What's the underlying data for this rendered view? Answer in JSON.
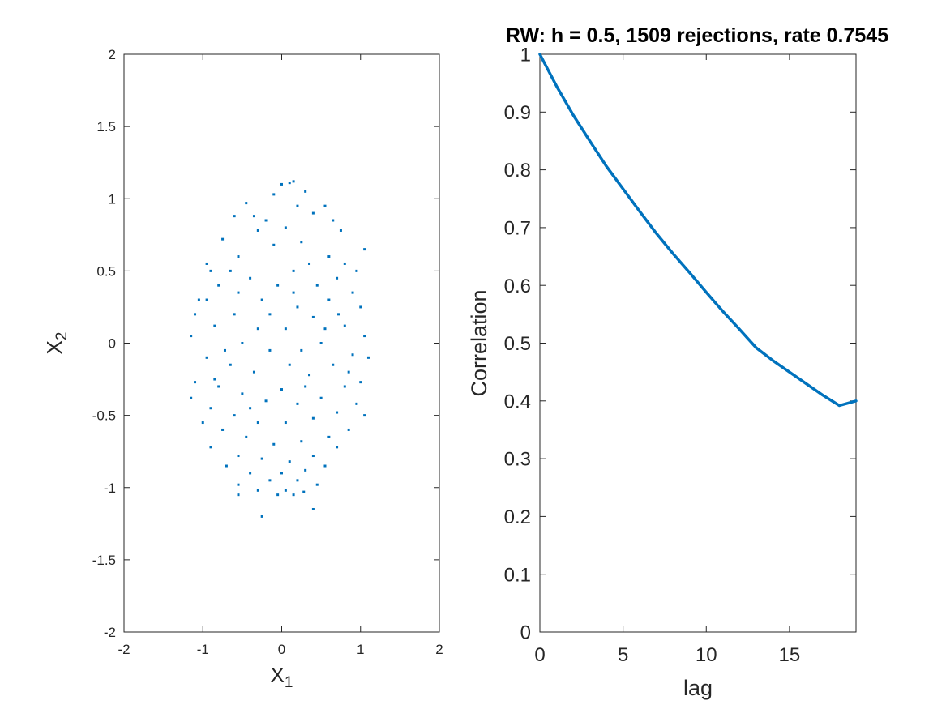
{
  "colors": {
    "series": "#0072BD",
    "axis": "#262626",
    "background": "#ffffff"
  },
  "chart_data": [
    {
      "type": "scatter",
      "title": "",
      "xlabel": "X",
      "xlabel_sub": "1",
      "ylabel": "X",
      "ylabel_sub": "2",
      "xlim": [
        -2,
        2
      ],
      "ylim": [
        -2,
        2
      ],
      "xticks": [
        -2,
        -1,
        0,
        1,
        2
      ],
      "yticks": [
        -2,
        -1.5,
        -1,
        -0.5,
        0,
        0.5,
        1,
        1.5,
        2
      ],
      "xtick_labels": [
        "-2",
        "-1",
        "0",
        "1",
        "2"
      ],
      "ytick_labels": [
        "-2",
        "-1.5",
        "-1",
        "-0.5",
        "0",
        "0.5",
        "1",
        "1.5",
        "2"
      ],
      "grid": false,
      "series": [
        {
          "points": [
            [
              0,
              1.1
            ],
            [
              0.1,
              1.11
            ],
            [
              0.15,
              1.12
            ],
            [
              -0.1,
              1.03
            ],
            [
              0.3,
              1.05
            ],
            [
              -0.45,
              0.97
            ],
            [
              0.55,
              0.95
            ],
            [
              -0.6,
              0.88
            ],
            [
              0.4,
              0.9
            ],
            [
              -0.2,
              0.85
            ],
            [
              0.2,
              0.95
            ],
            [
              0.05,
              0.8
            ],
            [
              -0.3,
              0.78
            ],
            [
              0.75,
              0.78
            ],
            [
              -0.75,
              0.72
            ],
            [
              0.25,
              0.7
            ],
            [
              -0.1,
              0.68
            ],
            [
              0.6,
              0.6
            ],
            [
              -0.55,
              0.6
            ],
            [
              0.8,
              0.55
            ],
            [
              -0.9,
              0.5
            ],
            [
              1.05,
              0.65
            ],
            [
              -0.65,
              0.5
            ],
            [
              0.35,
              0.55
            ],
            [
              0.15,
              0.5
            ],
            [
              0.45,
              0.4
            ],
            [
              -0.4,
              0.45
            ],
            [
              0.7,
              0.45
            ],
            [
              -0.8,
              0.4
            ],
            [
              -0.05,
              0.4
            ],
            [
              0.9,
              0.35
            ],
            [
              -0.95,
              0.3
            ],
            [
              0.6,
              0.3
            ],
            [
              -0.25,
              0.3
            ],
            [
              0.2,
              0.25
            ],
            [
              1.0,
              0.25
            ],
            [
              -1.1,
              0.2
            ],
            [
              -0.6,
              0.2
            ],
            [
              0.4,
              0.18
            ],
            [
              -0.85,
              0.12
            ],
            [
              0.8,
              0.12
            ],
            [
              -0.3,
              0.1
            ],
            [
              0.05,
              0.1
            ],
            [
              1.05,
              0.05
            ],
            [
              -1.15,
              0.05
            ],
            [
              0.5,
              0.0
            ],
            [
              -0.5,
              0.0
            ],
            [
              -0.15,
              -0.05
            ],
            [
              0.25,
              -0.05
            ],
            [
              0.9,
              -0.08
            ],
            [
              -0.95,
              -0.1
            ],
            [
              -0.65,
              -0.15
            ],
            [
              0.65,
              -0.15
            ],
            [
              0.1,
              -0.15
            ],
            [
              -0.35,
              -0.2
            ],
            [
              0.35,
              -0.22
            ],
            [
              -1.1,
              -0.27
            ],
            [
              1.0,
              -0.27
            ],
            [
              -0.8,
              -0.3
            ],
            [
              0.8,
              -0.3
            ],
            [
              0.0,
              -0.32
            ],
            [
              -0.5,
              -0.35
            ],
            [
              0.5,
              -0.38
            ],
            [
              -1.15,
              -0.38
            ],
            [
              -0.2,
              -0.4
            ],
            [
              0.2,
              -0.42
            ],
            [
              0.95,
              -0.42
            ],
            [
              -0.9,
              -0.45
            ],
            [
              0.7,
              -0.48
            ],
            [
              -0.6,
              -0.5
            ],
            [
              0.4,
              -0.52
            ],
            [
              -0.3,
              -0.55
            ],
            [
              0.05,
              -0.55
            ],
            [
              1.05,
              -0.5
            ],
            [
              -1.0,
              -0.55
            ],
            [
              -0.75,
              -0.6
            ],
            [
              0.85,
              -0.6
            ],
            [
              0.6,
              -0.65
            ],
            [
              -0.45,
              -0.65
            ],
            [
              0.25,
              -0.68
            ],
            [
              -0.1,
              -0.7
            ],
            [
              -0.9,
              -0.72
            ],
            [
              0.7,
              -0.72
            ],
            [
              0.4,
              -0.78
            ],
            [
              -0.55,
              -0.78
            ],
            [
              -0.25,
              -0.8
            ],
            [
              0.1,
              -0.82
            ],
            [
              -0.7,
              -0.85
            ],
            [
              0.55,
              -0.85
            ],
            [
              0.3,
              -0.88
            ],
            [
              -0.4,
              -0.9
            ],
            [
              0.0,
              -0.9
            ],
            [
              -0.15,
              -0.95
            ],
            [
              0.2,
              -0.95
            ],
            [
              -0.55,
              -0.98
            ],
            [
              0.45,
              -0.98
            ],
            [
              -0.3,
              -1.02
            ],
            [
              0.05,
              -1.02
            ],
            [
              -0.05,
              -1.05
            ],
            [
              0.15,
              -1.05
            ],
            [
              -0.55,
              -1.05
            ],
            [
              0.28,
              -1.03
            ],
            [
              -0.25,
              -1.2
            ],
            [
              0.4,
              -1.15
            ],
            [
              0.72,
              0.2
            ],
            [
              -0.72,
              -0.05
            ],
            [
              0.15,
              0.35
            ],
            [
              -0.15,
              0.2
            ],
            [
              0.3,
              -0.3
            ],
            [
              -0.4,
              -0.45
            ],
            [
              0.55,
              0.1
            ],
            [
              -0.55,
              0.35
            ],
            [
              0.85,
              -0.2
            ],
            [
              -0.85,
              -0.25
            ],
            [
              1.1,
              -0.1
            ],
            [
              -1.05,
              0.3
            ],
            [
              0.65,
              0.85
            ],
            [
              -0.35,
              0.88
            ],
            [
              0.95,
              0.5
            ],
            [
              -0.95,
              0.55
            ]
          ]
        }
      ]
    },
    {
      "type": "line",
      "title": "RW: h = 0.5, 1509 rejections, rate 0.7545",
      "xlabel": "lag",
      "ylabel": "Correlation",
      "xlim": [
        0,
        19
      ],
      "ylim": [
        0,
        1
      ],
      "xticks": [
        0,
        5,
        10,
        15
      ],
      "yticks": [
        0,
        0.1,
        0.2,
        0.3,
        0.4,
        0.5,
        0.6,
        0.7,
        0.8,
        0.9,
        1
      ],
      "xtick_labels": [
        "0",
        "5",
        "10",
        "15"
      ],
      "ytick_labels": [
        "0",
        "0.1",
        "0.2",
        "0.3",
        "0.4",
        "0.5",
        "0.6",
        "0.7",
        "0.8",
        "0.9",
        "1"
      ],
      "grid": false,
      "series": [
        {
          "x": [
            0,
            1,
            2,
            3,
            4,
            5,
            6,
            7,
            8,
            9,
            10,
            11,
            12,
            13,
            14,
            15,
            16,
            17,
            18,
            19
          ],
          "y": [
            1.0,
            0.945,
            0.895,
            0.85,
            0.806,
            0.767,
            0.728,
            0.69,
            0.655,
            0.622,
            0.588,
            0.555,
            0.524,
            0.492,
            0.47,
            0.45,
            0.43,
            0.41,
            0.392,
            0.4
          ]
        }
      ]
    }
  ]
}
